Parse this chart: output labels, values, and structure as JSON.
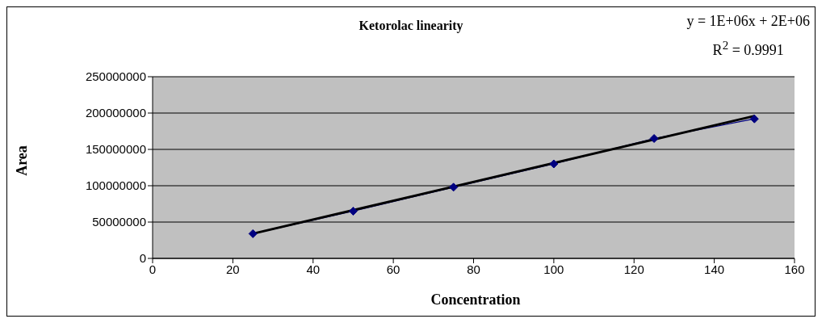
{
  "chart_data": {
    "type": "line",
    "title": "Ketorolac linearity",
    "xlabel": "Concentration",
    "ylabel": "Area",
    "annotations": [
      "y = 1E+06x + 2E+06",
      "R$^{2}$ = 0.9991"
    ],
    "x": [
      25,
      50,
      75,
      100,
      125,
      150
    ],
    "series": [
      {
        "color": "#000080",
        "marker": "diamond",
        "values": [
          34000000,
          65000000,
          98000000,
          130000000,
          165000000,
          192000000
        ]
      },
      {
        "color": "#000000",
        "marker": "none",
        "x": [
          25,
          150
        ],
        "values": [
          34000000,
          196000000
        ]
      }
    ],
    "xlim": [
      0,
      160
    ],
    "xticks": [
      0,
      20,
      40,
      60,
      80,
      100,
      120,
      140,
      160
    ],
    "ylim": [
      0,
      250000000
    ],
    "yticks": [
      0,
      50000000,
      100000000,
      150000000,
      200000000,
      250000000
    ],
    "grid": "y"
  }
}
